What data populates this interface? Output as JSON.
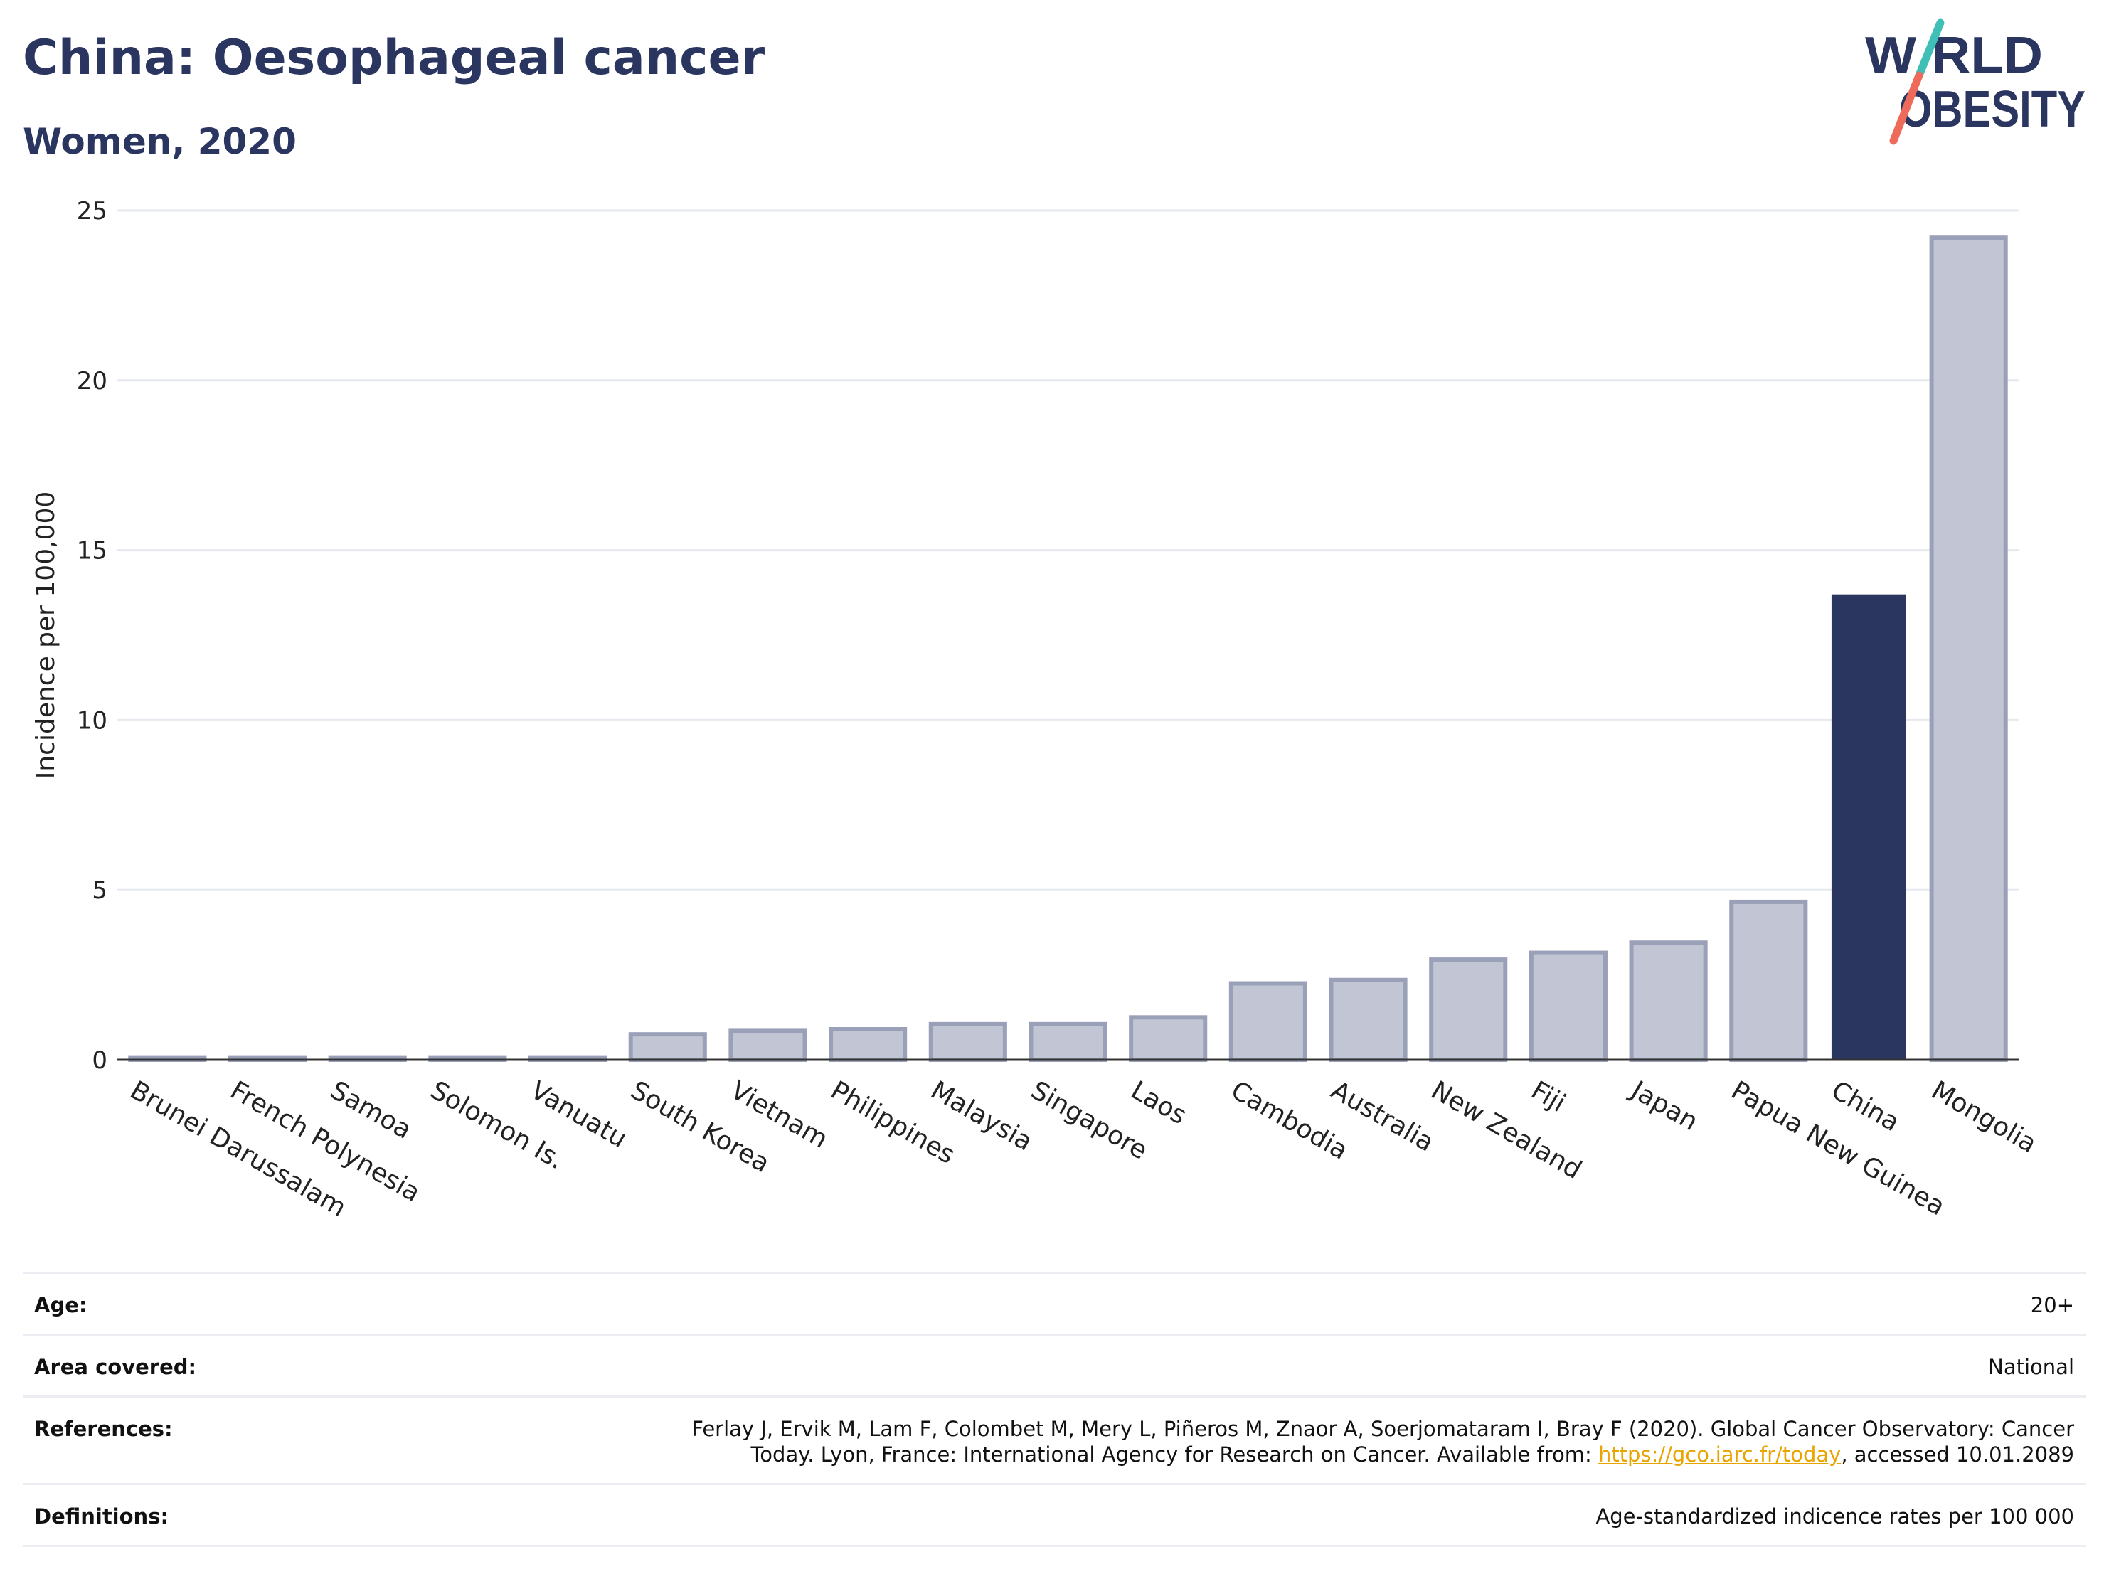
{
  "title": "China: Oesophageal cancer",
  "subtitle": "Women, 2020",
  "logo": {
    "line1": "W RLD",
    "line2": "OBESITY",
    "colors": {
      "navy": "#2a3560",
      "teal": "#3fbfb5",
      "coral": "#ee6a5a"
    }
  },
  "colors": {
    "highlight": "#2a3560",
    "bar_fill": "#c2c6d4",
    "bar_stroke": "#9aa0b8",
    "grid": "#e6e8ef",
    "link": "#e8a500"
  },
  "chart_data": {
    "type": "bar",
    "title": "China: Oesophageal cancer",
    "subtitle": "Women, 2020",
    "xlabel": "",
    "ylabel": "Incidence per 100,000",
    "ylim": [
      0,
      25
    ],
    "yticks": [
      0,
      5,
      10,
      15,
      20,
      25
    ],
    "grid": true,
    "highlight": "China",
    "categories": [
      "Brunei Darussalam",
      "French Polynesia",
      "Samoa",
      "Solomon Is.",
      "Vanuatu",
      "South Korea",
      "Vietnam",
      "Philippines",
      "Malaysia",
      "Singapore",
      "Laos",
      "Cambodia",
      "Australia",
      "New Zealand",
      "Fiji",
      "Japan",
      "Papua New Guinea",
      "China",
      "Mongolia"
    ],
    "values": [
      0.05,
      0.05,
      0.05,
      0.05,
      0.05,
      0.75,
      0.85,
      0.9,
      1.05,
      1.05,
      1.25,
      2.25,
      2.35,
      2.95,
      3.15,
      3.45,
      4.65,
      13.7,
      24.2
    ]
  },
  "footer": {
    "age_label": "Age:",
    "age_value": "20+",
    "area_label": "Area covered:",
    "area_value": "National",
    "references_label": "References:",
    "references_line1": "Ferlay J, Ervik M, Lam F, Colombet M, Mery L, Piñeros M, Znaor A, Soerjomataram I, Bray F (2020). Global Cancer Observatory: Cancer",
    "references_line2_pre": "Today. Lyon, France: International Agency for Research on Cancer. Available from: ",
    "references_link": "https://gco.iarc.fr/today",
    "references_line2_post": ", accessed 10.01.2089",
    "definitions_label": "Definitions:",
    "definitions_value": "Age-standardized indicence rates per 100 000"
  }
}
